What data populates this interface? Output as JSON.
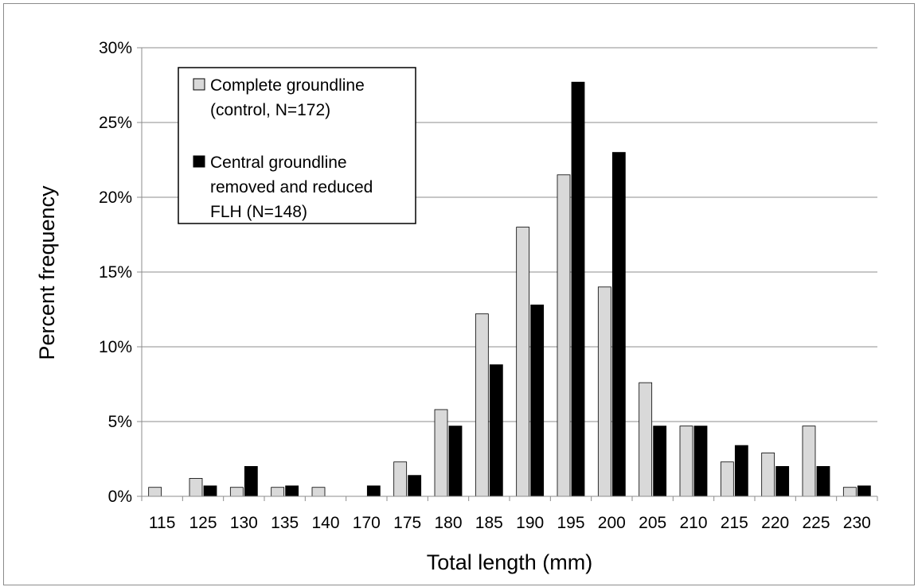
{
  "chart_data": {
    "type": "bar",
    "xlabel": "Total length (mm)",
    "ylabel": "Percent frequency",
    "categories": [
      "115",
      "125",
      "130",
      "135",
      "140",
      "170",
      "175",
      "180",
      "185",
      "190",
      "195",
      "200",
      "205",
      "210",
      "215",
      "220",
      "225",
      "230"
    ],
    "series": [
      {
        "name": "Complete groundline (control, N=172)",
        "name_lines": [
          "Complete groundline",
          "(control, N=172)"
        ],
        "color": "#d9d9d9",
        "values": [
          0.6,
          1.2,
          0.6,
          0.6,
          0.6,
          0.0,
          2.3,
          5.8,
          12.2,
          18.0,
          21.5,
          14.0,
          7.6,
          4.7,
          2.3,
          2.9,
          4.7,
          0.6
        ]
      },
      {
        "name": "Central groundline removed and reduced FLH (N=148)",
        "name_lines": [
          "Central groundline",
          "removed and reduced",
          "FLH (N=148)"
        ],
        "color": "#000000",
        "values": [
          0.0,
          0.7,
          2.0,
          0.7,
          0.0,
          0.7,
          1.4,
          4.7,
          8.8,
          12.8,
          27.7,
          23.0,
          4.7,
          4.7,
          3.4,
          2.0,
          2.0,
          0.7
        ]
      }
    ],
    "ylim": [
      0,
      30
    ],
    "yticks": [
      "0%",
      "5%",
      "10%",
      "15%",
      "20%",
      "25%",
      "30%"
    ],
    "grid": true,
    "legend_position": "top-left"
  }
}
